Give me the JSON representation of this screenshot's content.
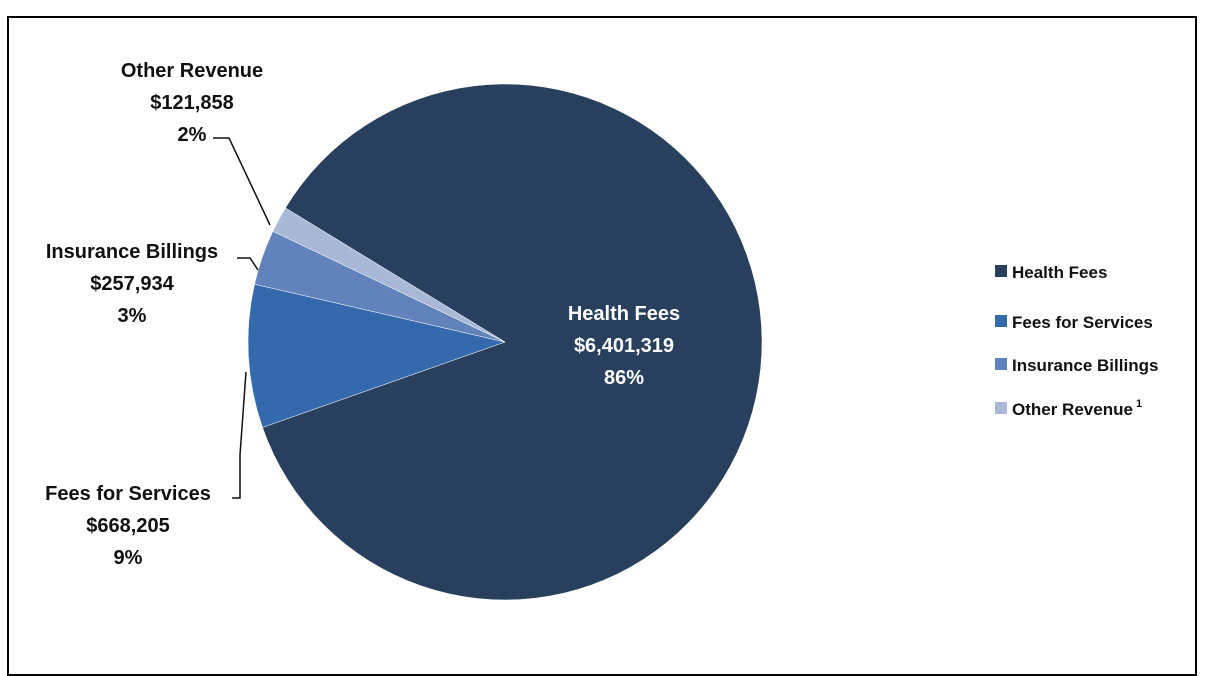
{
  "chart_data": {
    "type": "pie",
    "title": "",
    "slices": [
      {
        "name": "Health Fees",
        "value": 6401319,
        "value_label": "$6,401,319",
        "percent_label": "86%",
        "color": "#283f5e"
      },
      {
        "name": "Fees for Services",
        "value": 668205,
        "value_label": "$668,205",
        "percent_label": "9%",
        "color": "#3569ad"
      },
      {
        "name": "Insurance Billings",
        "value": 257934,
        "value_label": "$257,934",
        "percent_label": "3%",
        "color": "#6182bb"
      },
      {
        "name": "Other Revenue",
        "value": 121858,
        "value_label": "$121,858",
        "percent_label": "2%",
        "color": "#a8b8d6"
      }
    ],
    "legend": {
      "placement": "right",
      "entries": [
        {
          "label": "Health Fees",
          "sup": ""
        },
        {
          "label": "Fees for Services",
          "sup": ""
        },
        {
          "label": "Insurance Billings",
          "sup": ""
        },
        {
          "label": "Other Revenue",
          "sup": "1"
        }
      ]
    }
  }
}
